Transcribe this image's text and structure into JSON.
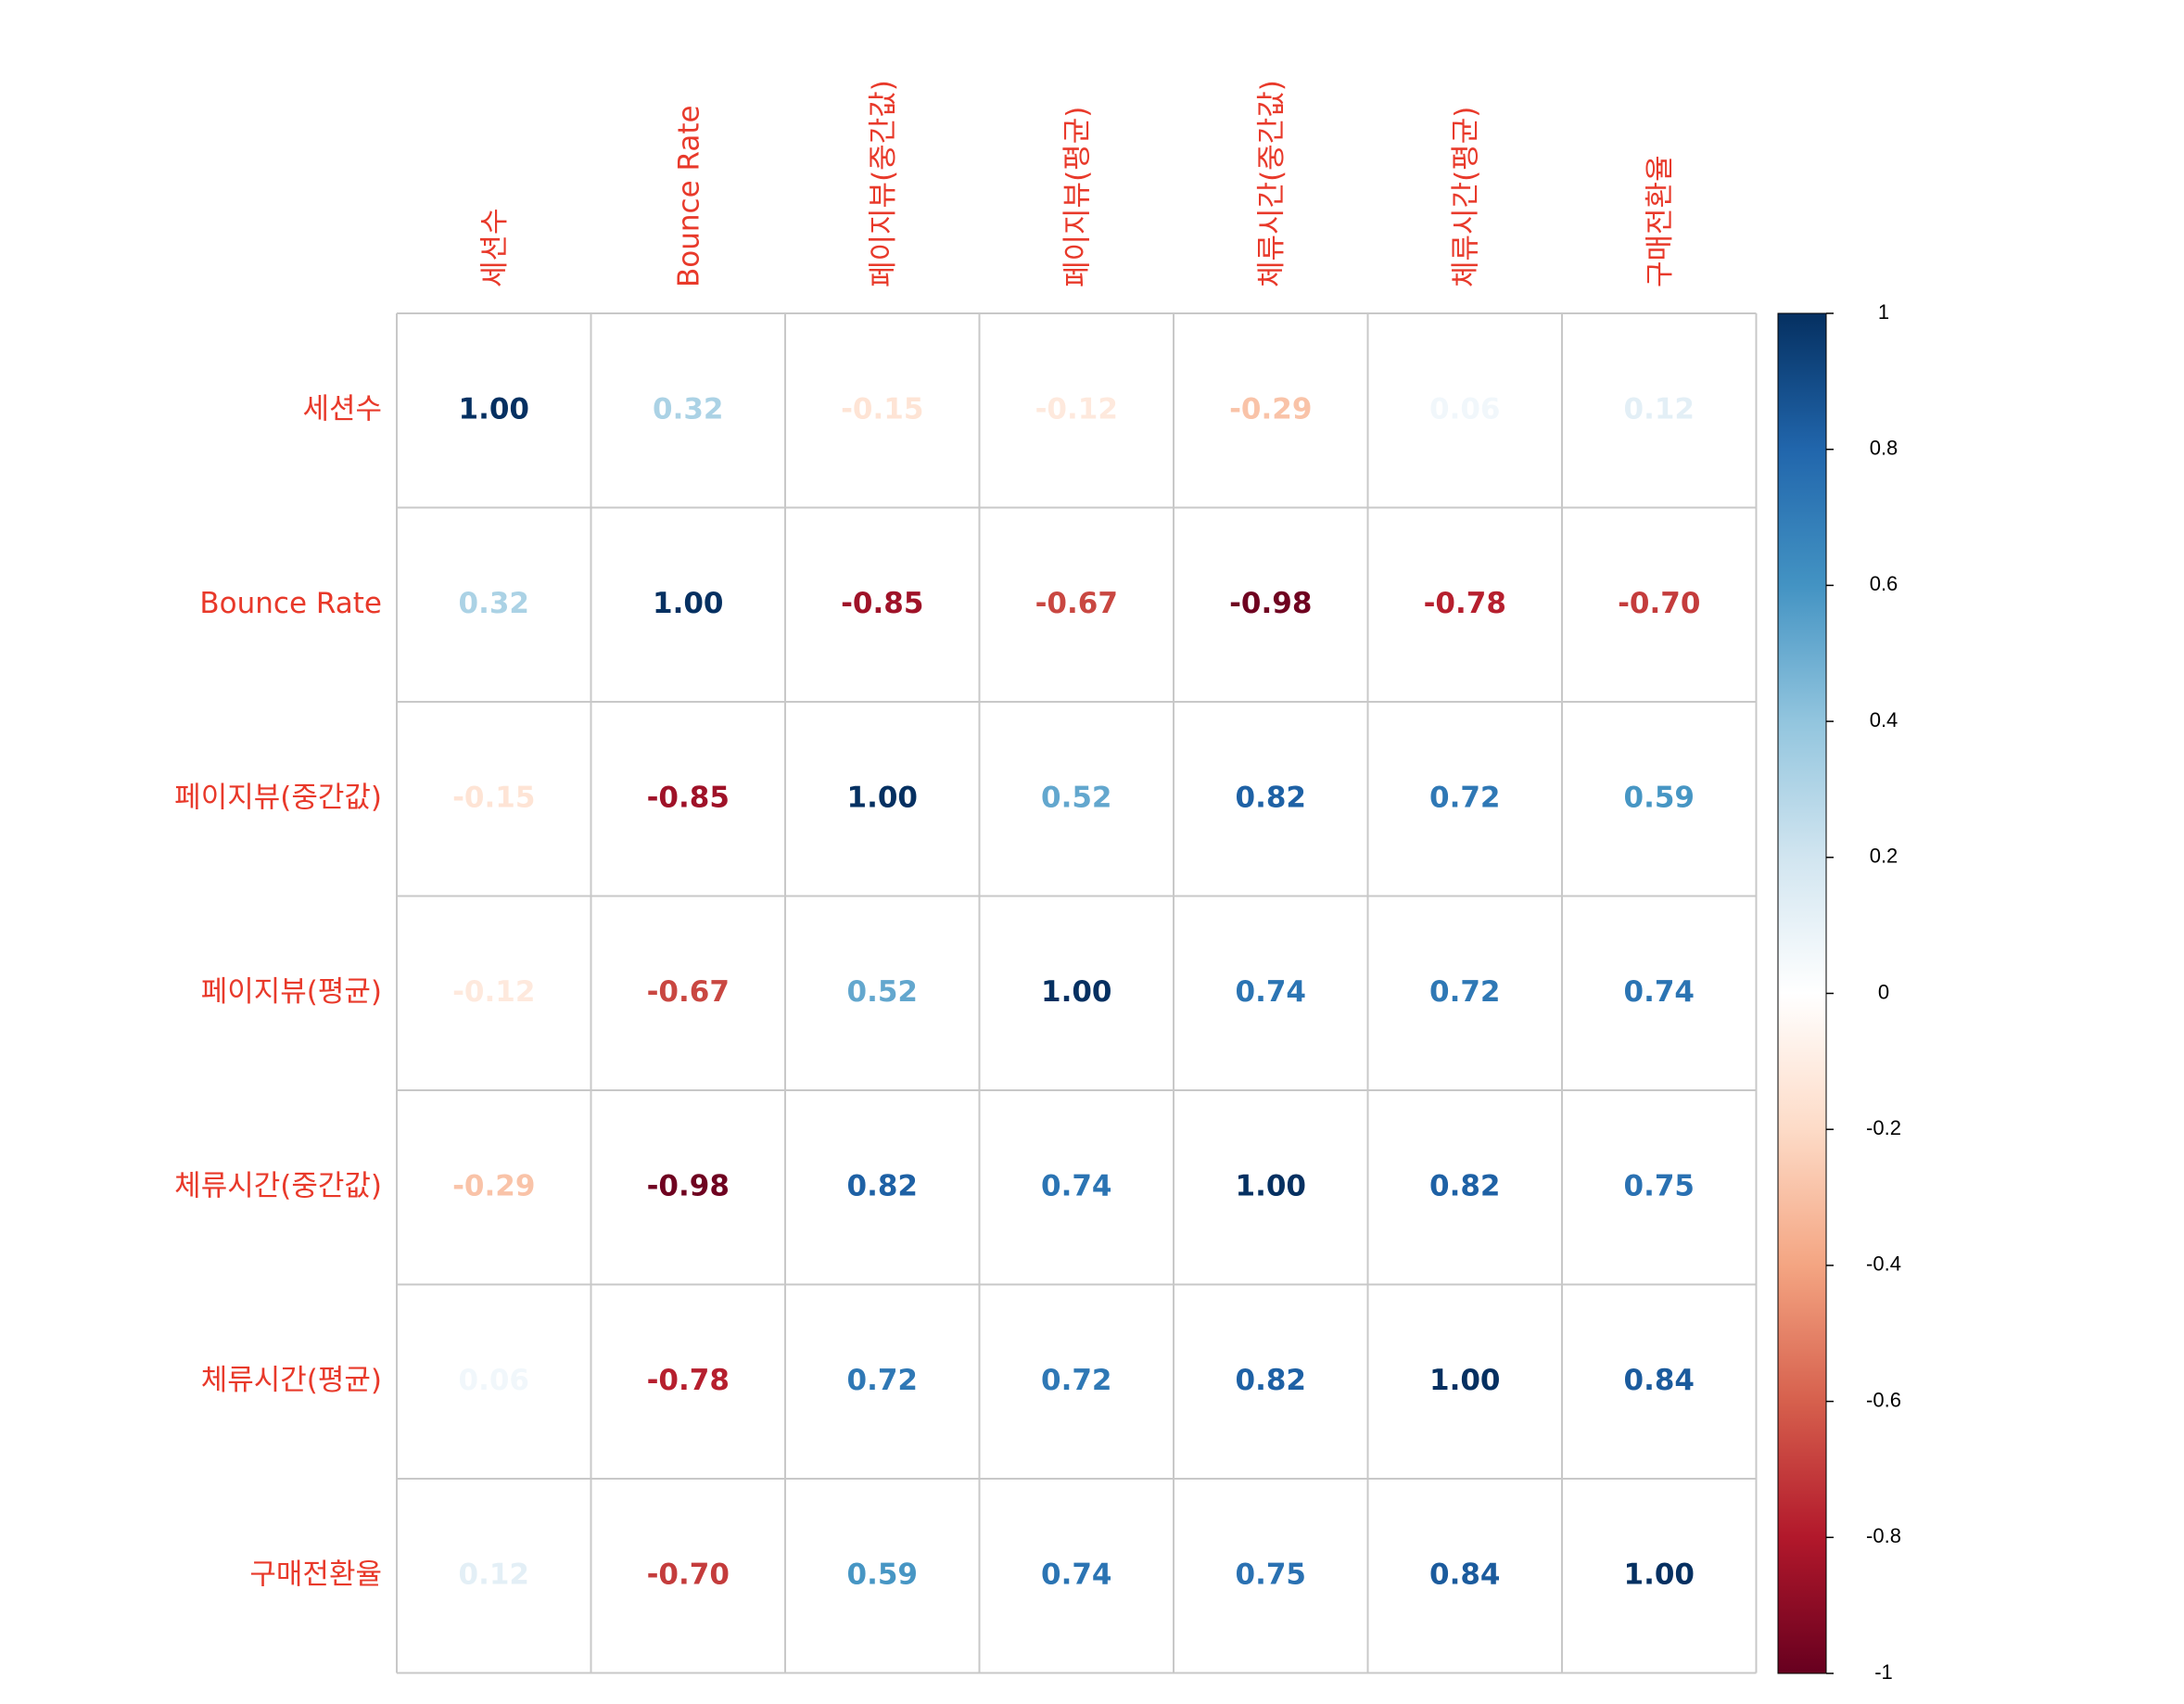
{
  "chart_data": {
    "type": "heatmap",
    "variables": [
      "세션수",
      "Bounce Rate",
      "페이지뷰(중간값)",
      "페이지뷰(평균)",
      "체류시간(중간값)",
      "체류시간(평균)",
      "구매전환율"
    ],
    "matrix": [
      [
        1.0,
        0.32,
        -0.15,
        -0.12,
        -0.29,
        0.06,
        0.12
      ],
      [
        0.32,
        1.0,
        -0.85,
        -0.67,
        -0.98,
        -0.78,
        -0.7
      ],
      [
        -0.15,
        -0.85,
        1.0,
        0.52,
        0.82,
        0.72,
        0.59
      ],
      [
        -0.12,
        -0.67,
        0.52,
        1.0,
        0.74,
        0.72,
        0.74
      ],
      [
        -0.29,
        -0.98,
        0.82,
        0.74,
        1.0,
        0.82,
        0.75
      ],
      [
        0.06,
        -0.78,
        0.72,
        0.72,
        0.82,
        1.0,
        0.84
      ],
      [
        0.12,
        -0.7,
        0.59,
        0.74,
        0.75,
        0.84,
        1.0
      ]
    ],
    "colorbar": {
      "range": [
        -1,
        1
      ],
      "tick_labels": [
        "1",
        "0.8",
        "0.6",
        "0.4",
        "0.2",
        "0",
        "-0.2",
        "-0.4",
        "-0.6",
        "-0.8",
        "-1"
      ],
      "tick_values": [
        1,
        0.8,
        0.6,
        0.4,
        0.2,
        0,
        -0.2,
        -0.4,
        -0.6,
        -0.8,
        -1
      ]
    },
    "palette": {
      "low": "#67001f",
      "mid": "#ffffff",
      "high": "#053061",
      "label_color": "#e8392a",
      "grid_color": "#c8c8c8"
    },
    "title": "",
    "xlabel": "",
    "ylabel": ""
  }
}
